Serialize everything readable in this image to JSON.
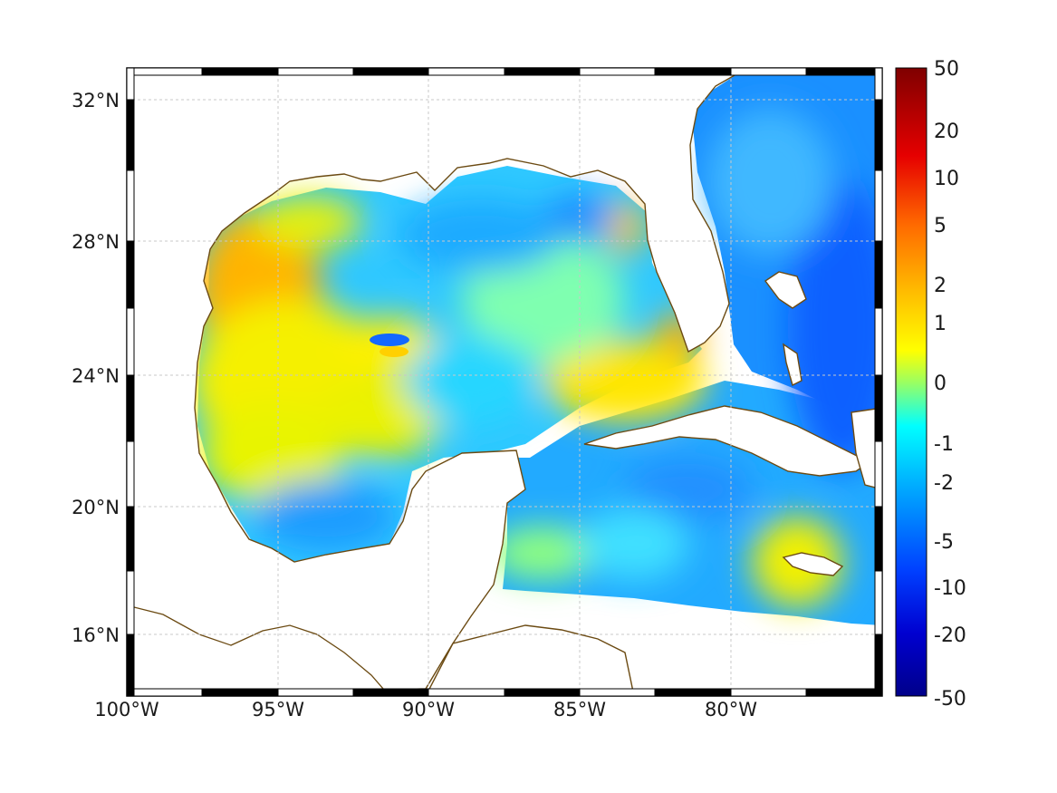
{
  "map": {
    "lat_ticks": [
      "32°N",
      "28°N",
      "24°N",
      "20°N",
      "16°N"
    ],
    "lon_ticks": [
      "100°W",
      "95°W",
      "90°W",
      "85°W",
      "80°W"
    ],
    "lat_values": [
      32,
      28,
      24,
      20,
      16
    ],
    "lon_values": [
      -100,
      -95,
      -90,
      -85,
      -80
    ],
    "extent": {
      "lon": [
        -100,
        -75
      ],
      "lat": [
        14.3,
        33
      ]
    },
    "grid": true,
    "coast_color": "#6b4a12",
    "land_color": "#ffffff"
  },
  "colorbar": {
    "labels": [
      "50",
      "20",
      "10",
      "5",
      "2",
      "1",
      "0",
      "-1",
      "-2",
      "-5",
      "-10",
      "-20",
      "-50"
    ],
    "range": [
      -50,
      50
    ],
    "colors": [
      "#7f0000",
      "#ff0000",
      "#ff8000",
      "#ffff00",
      "#00ffff",
      "#0080ff",
      "#0000ff",
      "#00008f"
    ]
  }
}
